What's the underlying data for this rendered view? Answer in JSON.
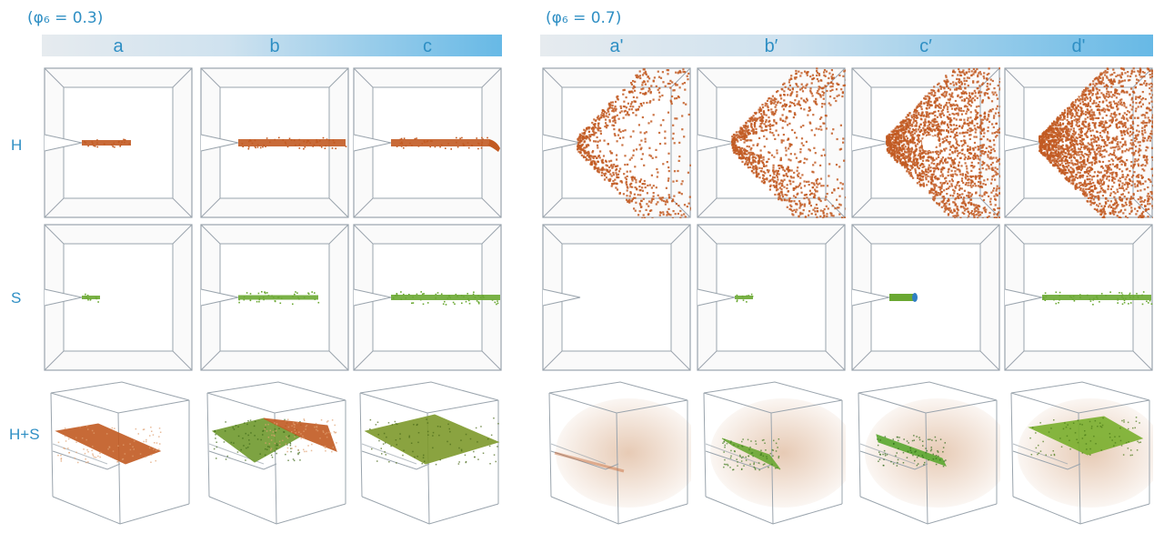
{
  "groups": [
    {
      "id": "left",
      "title": "(φ₆ = 0.3)",
      "columns": [
        "a",
        "b",
        "c"
      ]
    },
    {
      "id": "right",
      "title": "(φ₆ = 0.7)",
      "columns": [
        "a'",
        "b′",
        "c′",
        "d'"
      ]
    }
  ],
  "rows": [
    {
      "id": "H",
      "label": "H"
    },
    {
      "id": "S",
      "label": "S"
    },
    {
      "id": "HS",
      "label": "H+S"
    }
  ],
  "colors": {
    "label": "#2f8fc4",
    "hydride": "#c25a22",
    "slip": "#6aa832",
    "slip_edge": "#2f7fc4",
    "frame": "#9aa4ad"
  },
  "panels": {
    "H": [
      "short-band",
      "long-band",
      "long-band-bent",
      "fan-sparse",
      "fan-medium",
      "fan-dense-hole",
      "fan-full"
    ],
    "S": [
      "tiny-tip",
      "mid-band",
      "full-band",
      "none",
      "tiny-tip",
      "short-blue-band",
      "full-band"
    ],
    "HS": [
      "brown-plane-half",
      "green-brown-plane",
      "green-plane-full",
      "faint-brown",
      "green-wedge",
      "green-strip",
      "green-plane"
    ]
  }
}
